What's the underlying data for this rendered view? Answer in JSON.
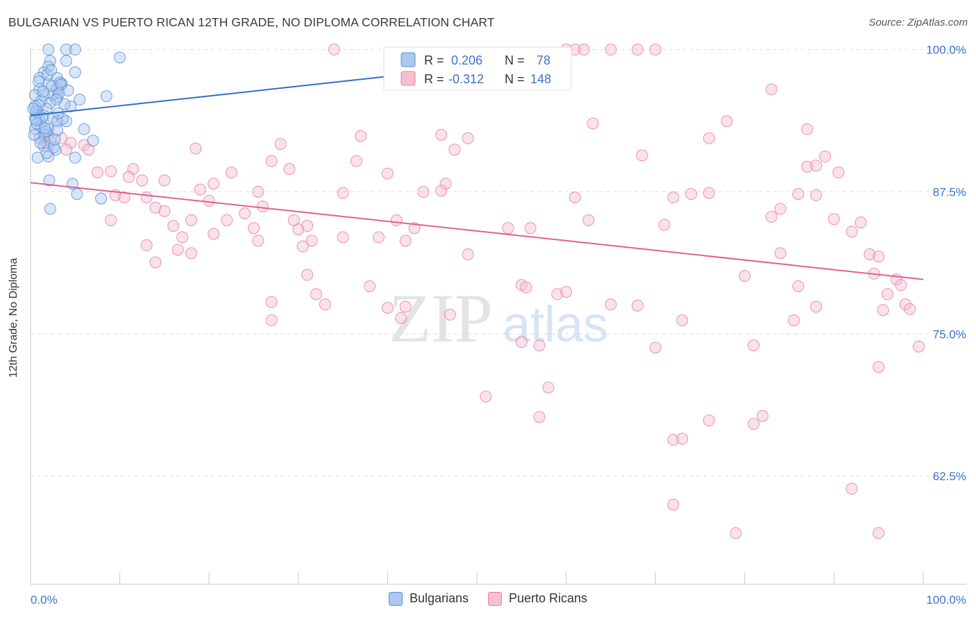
{
  "title": "BULGARIAN VS PUERTO RICAN 12TH GRADE, NO DIPLOMA CORRELATION CHART",
  "source": "Source: ZipAtlas.com",
  "watermark": {
    "zip": "ZIP",
    "atlas": "atlas"
  },
  "chart_data": {
    "type": "scatter",
    "ylabel": "12th Grade, No Diploma",
    "xlim": [
      0,
      100
    ],
    "ylim": [
      53,
      101
    ],
    "x_tick_labels": [
      "0.0%",
      "100.0%"
    ],
    "y_ticks": [
      {
        "value": 100.0,
        "label": "100.0%"
      },
      {
        "value": 87.5,
        "label": "87.5%"
      },
      {
        "value": 75.0,
        "label": "75.0%"
      },
      {
        "value": 62.5,
        "label": "62.5%"
      }
    ],
    "legend_stats": [
      {
        "r_label": "R =",
        "r": "0.206",
        "n_label": "N =",
        "n": "78"
      },
      {
        "r_label": "R =",
        "r": "-0.312",
        "n_label": "N =",
        "n": "148"
      }
    ],
    "series": [
      {
        "name": "Bulgarians",
        "color": "#5b8fd8",
        "fill": "#aac8f0",
        "line_color": "#2d6fcf",
        "trend": {
          "x0": 0,
          "y0": 94.2,
          "x1": 57,
          "y1": 99.1
        },
        "points": [
          [
            2,
            100
          ],
          [
            4,
            100
          ],
          [
            5,
            100
          ],
          [
            2.2,
            99
          ],
          [
            4,
            99
          ],
          [
            2,
            98.5
          ],
          [
            1.5,
            98
          ],
          [
            5,
            98
          ],
          [
            1,
            97.5
          ],
          [
            3,
            97.5
          ],
          [
            2,
            97
          ],
          [
            3.5,
            97
          ],
          [
            1,
            96.5
          ],
          [
            3,
            96.5
          ],
          [
            2.5,
            96
          ],
          [
            1.5,
            96
          ],
          [
            0.5,
            96
          ],
          [
            3,
            95.8
          ],
          [
            5.5,
            95.6
          ],
          [
            8.5,
            95.9
          ],
          [
            1.2,
            95.5
          ],
          [
            2.2,
            95.3
          ],
          [
            4.5,
            95
          ],
          [
            0.5,
            95
          ],
          [
            1.8,
            94.8
          ],
          [
            0.8,
            94.5
          ],
          [
            1.5,
            94.2
          ],
          [
            2.5,
            94
          ],
          [
            0.5,
            94
          ],
          [
            1,
            93.8
          ],
          [
            3,
            93.7
          ],
          [
            4,
            93.7
          ],
          [
            1.2,
            93.3
          ],
          [
            0.5,
            93
          ],
          [
            2,
            93
          ],
          [
            6,
            93
          ],
          [
            3,
            92.9
          ],
          [
            1.5,
            92.5
          ],
          [
            1,
            92.2
          ],
          [
            2.2,
            92
          ],
          [
            7,
            92
          ],
          [
            1.5,
            91.5
          ],
          [
            2.8,
            91.2
          ],
          [
            2,
            90.6
          ],
          [
            0.8,
            90.5
          ],
          [
            5,
            90.5
          ],
          [
            2.1,
            88.5
          ],
          [
            4.7,
            88.2
          ],
          [
            5.2,
            87.3
          ],
          [
            7.9,
            86.9
          ],
          [
            2.2,
            86
          ],
          [
            10,
            99.3
          ],
          [
            3.2,
            96.2
          ],
          [
            3.3,
            97.1
          ],
          [
            0.6,
            94.6
          ],
          [
            0.9,
            95.1
          ],
          [
            1.7,
            92.8
          ],
          [
            2.6,
            91.4
          ],
          [
            0.4,
            92.5
          ],
          [
            1.3,
            94.0
          ],
          [
            3.8,
            95.2
          ],
          [
            1.9,
            97.8
          ],
          [
            2.4,
            96.8
          ],
          [
            0.7,
            93.5
          ],
          [
            1.1,
            91.8
          ],
          [
            3.6,
            93.9
          ],
          [
            2.9,
            95.6
          ],
          [
            1.4,
            96.3
          ],
          [
            0.3,
            94.8
          ],
          [
            2.7,
            92.1
          ],
          [
            1.6,
            93.1
          ],
          [
            3.4,
            96.9
          ],
          [
            4.2,
            96.4
          ],
          [
            0.9,
            97.2
          ],
          [
            2.3,
            98.2
          ],
          [
            1.8,
            90.9
          ],
          [
            3.1,
            94.4
          ],
          [
            0.6,
            93.8
          ]
        ]
      },
      {
        "name": "Puerto Ricans",
        "color": "#e87ea5",
        "fill": "#f5bfd2",
        "line_color": "#e0608f",
        "trend": {
          "x0": 0,
          "y0": 88.3,
          "x1": 100,
          "y1": 79.8
        },
        "points": [
          [
            34,
            100
          ],
          [
            60,
            100
          ],
          [
            61,
            100
          ],
          [
            62,
            100
          ],
          [
            65,
            100
          ],
          [
            68,
            100
          ],
          [
            70,
            100
          ],
          [
            83,
            96.5
          ],
          [
            78,
            93.7
          ],
          [
            63,
            93.5
          ],
          [
            87,
            93
          ],
          [
            2,
            92.5
          ],
          [
            3.5,
            92.2
          ],
          [
            1.5,
            92
          ],
          [
            4.5,
            91.8
          ],
          [
            6,
            91.6
          ],
          [
            37,
            92.4
          ],
          [
            46,
            92.5
          ],
          [
            49,
            92.2
          ],
          [
            76,
            92.2
          ],
          [
            2,
            91.5
          ],
          [
            4,
            91.2
          ],
          [
            6.5,
            91.2
          ],
          [
            18.5,
            91.3
          ],
          [
            28,
            91.7
          ],
          [
            47.5,
            91.2
          ],
          [
            68.5,
            90.7
          ],
          [
            89,
            90.6
          ],
          [
            27,
            90.2
          ],
          [
            36.5,
            90.2
          ],
          [
            7.5,
            89.2
          ],
          [
            11.5,
            89.5
          ],
          [
            29,
            89.5
          ],
          [
            9,
            89.3
          ],
          [
            22.5,
            89.2
          ],
          [
            40,
            89.1
          ],
          [
            87,
            89.7
          ],
          [
            88,
            89.8
          ],
          [
            90.5,
            89.2
          ],
          [
            11,
            88.8
          ],
          [
            12.5,
            88.5
          ],
          [
            15,
            88.5
          ],
          [
            20.5,
            88.2
          ],
          [
            46.5,
            88.2
          ],
          [
            19,
            87.7
          ],
          [
            35,
            87.4
          ],
          [
            44,
            87.5
          ],
          [
            46,
            87.6
          ],
          [
            74,
            87.3
          ],
          [
            76,
            87.4
          ],
          [
            86,
            87.3
          ],
          [
            88,
            87.2
          ],
          [
            9.5,
            87.2
          ],
          [
            10.5,
            87
          ],
          [
            13,
            87
          ],
          [
            25.5,
            87.5
          ],
          [
            61,
            87
          ],
          [
            72,
            87
          ],
          [
            20,
            86.7
          ],
          [
            26,
            86.2
          ],
          [
            84,
            86
          ],
          [
            14,
            86.1
          ],
          [
            15,
            85.8
          ],
          [
            24,
            85.6
          ],
          [
            83,
            85.3
          ],
          [
            90,
            85.1
          ],
          [
            9,
            85
          ],
          [
            18,
            85
          ],
          [
            22,
            85
          ],
          [
            29.5,
            85
          ],
          [
            41,
            85
          ],
          [
            62.5,
            85
          ],
          [
            71,
            84.6
          ],
          [
            93,
            84.8
          ],
          [
            16,
            84.5
          ],
          [
            25,
            84.3
          ],
          [
            30,
            84.2
          ],
          [
            31,
            84.5
          ],
          [
            43,
            84.3
          ],
          [
            53.5,
            84.3
          ],
          [
            56,
            84.3
          ],
          [
            92,
            84
          ],
          [
            17,
            83.5
          ],
          [
            20.5,
            83.8
          ],
          [
            25.5,
            83.2
          ],
          [
            31.5,
            83.2
          ],
          [
            35,
            83.5
          ],
          [
            39,
            83.5
          ],
          [
            42,
            83.2
          ],
          [
            30.5,
            82.7
          ],
          [
            13,
            82.8
          ],
          [
            16.5,
            82.4
          ],
          [
            18,
            82.1
          ],
          [
            49,
            82
          ],
          [
            84,
            82.1
          ],
          [
            94,
            82
          ],
          [
            95,
            81.8
          ],
          [
            14,
            81.3
          ],
          [
            31,
            80.2
          ],
          [
            80,
            80.1
          ],
          [
            94.5,
            80.3
          ],
          [
            97,
            79.8
          ],
          [
            97.5,
            79.3
          ],
          [
            38,
            79.2
          ],
          [
            55,
            79.3
          ],
          [
            55.5,
            79.1
          ],
          [
            86,
            79.2
          ],
          [
            59,
            78.5
          ],
          [
            60,
            78.7
          ],
          [
            32,
            78.5
          ],
          [
            96,
            78.5
          ],
          [
            27,
            77.8
          ],
          [
            33,
            77.6
          ],
          [
            65,
            77.6
          ],
          [
            68,
            77.5
          ],
          [
            88,
            77.4
          ],
          [
            95.5,
            77.1
          ],
          [
            98,
            77.6
          ],
          [
            98.5,
            77.2
          ],
          [
            40,
            77.3
          ],
          [
            42,
            77.4
          ],
          [
            47,
            76.7
          ],
          [
            73,
            76.2
          ],
          [
            85.5,
            76.2
          ],
          [
            27,
            76.2
          ],
          [
            41.5,
            76.4
          ],
          [
            55,
            74.3
          ],
          [
            57,
            74
          ],
          [
            70,
            73.8
          ],
          [
            81,
            74
          ],
          [
            99.5,
            73.9
          ],
          [
            95,
            72.1
          ],
          [
            58,
            70.3
          ],
          [
            51,
            69.5
          ],
          [
            57,
            67.7
          ],
          [
            76,
            67.4
          ],
          [
            81,
            67.1
          ],
          [
            82,
            67.8
          ],
          [
            72,
            65.7
          ],
          [
            73,
            65.8
          ],
          [
            92,
            61.4
          ],
          [
            72,
            60
          ],
          [
            95,
            57.5
          ],
          [
            79,
            57.5
          ]
        ]
      }
    ]
  }
}
